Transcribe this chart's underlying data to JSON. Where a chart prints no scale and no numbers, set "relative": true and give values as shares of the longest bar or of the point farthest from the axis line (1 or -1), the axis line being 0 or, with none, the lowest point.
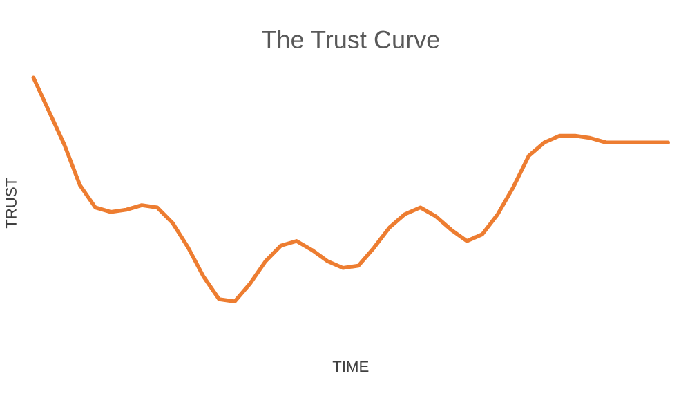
{
  "chart_data": {
    "type": "line",
    "title": "The Trust Curve",
    "xlabel": "TIME",
    "ylabel": "TRUST",
    "relative": true,
    "categories": [
      null,
      null,
      null,
      null,
      null,
      null,
      null,
      null,
      null,
      null,
      null,
      null,
      null,
      null,
      null,
      null,
      null,
      null,
      null,
      null,
      null,
      null,
      null,
      null,
      null,
      null,
      null,
      null,
      null,
      null,
      null,
      null,
      null,
      null,
      null,
      null,
      null,
      null,
      null,
      null,
      null,
      null
    ],
    "series": [
      {
        "color": "#ed7d31",
        "values": [
          1,
          0.85,
          0.7,
          0.52,
          0.42,
          0.4,
          0.41,
          0.43,
          0.42,
          0.35,
          0.24,
          0.11,
          0.01,
          0,
          0.08,
          0.18,
          0.25,
          0.27,
          0.23,
          0.18,
          0.15,
          0.16,
          0.24,
          0.33,
          0.39,
          0.42,
          0.38,
          0.32,
          0.27,
          0.3,
          0.39,
          0.51,
          0.65,
          0.71,
          0.74,
          0.74,
          0.73,
          0.71,
          0.71,
          0.71,
          0.71,
          0.71
        ]
      }
    ],
    "grid": false,
    "marker": "none",
    "line_style": "solid"
  }
}
